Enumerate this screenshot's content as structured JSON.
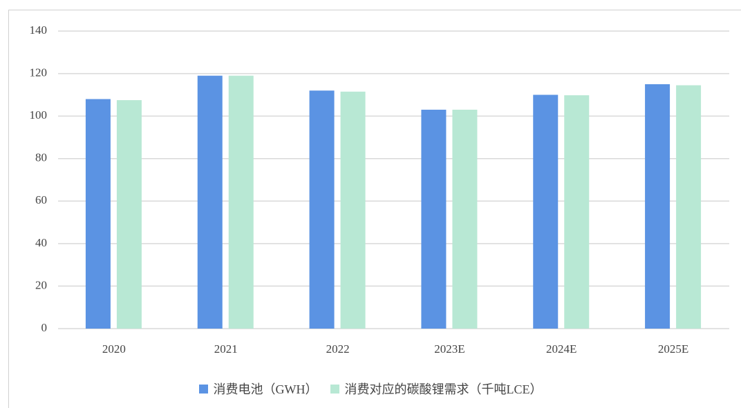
{
  "chart_data": {
    "type": "bar",
    "categories": [
      "2020",
      "2021",
      "2022",
      "2023E",
      "2024E",
      "2025E"
    ],
    "series": [
      {
        "name": "消费电池（GWH）",
        "color": "#5b93e3",
        "values": [
          108,
          119,
          112,
          103,
          110,
          115
        ]
      },
      {
        "name": "消费对应的碳酸锂需求（千吨LCE）",
        "color": "#b8e8d4",
        "values": [
          107.5,
          119,
          111.5,
          103,
          109.8,
          114.5
        ]
      }
    ],
    "ylim": [
      0,
      140
    ],
    "yticks": [
      0,
      20,
      40,
      60,
      80,
      100,
      120,
      140
    ],
    "grid": true,
    "legend": "bottom"
  }
}
